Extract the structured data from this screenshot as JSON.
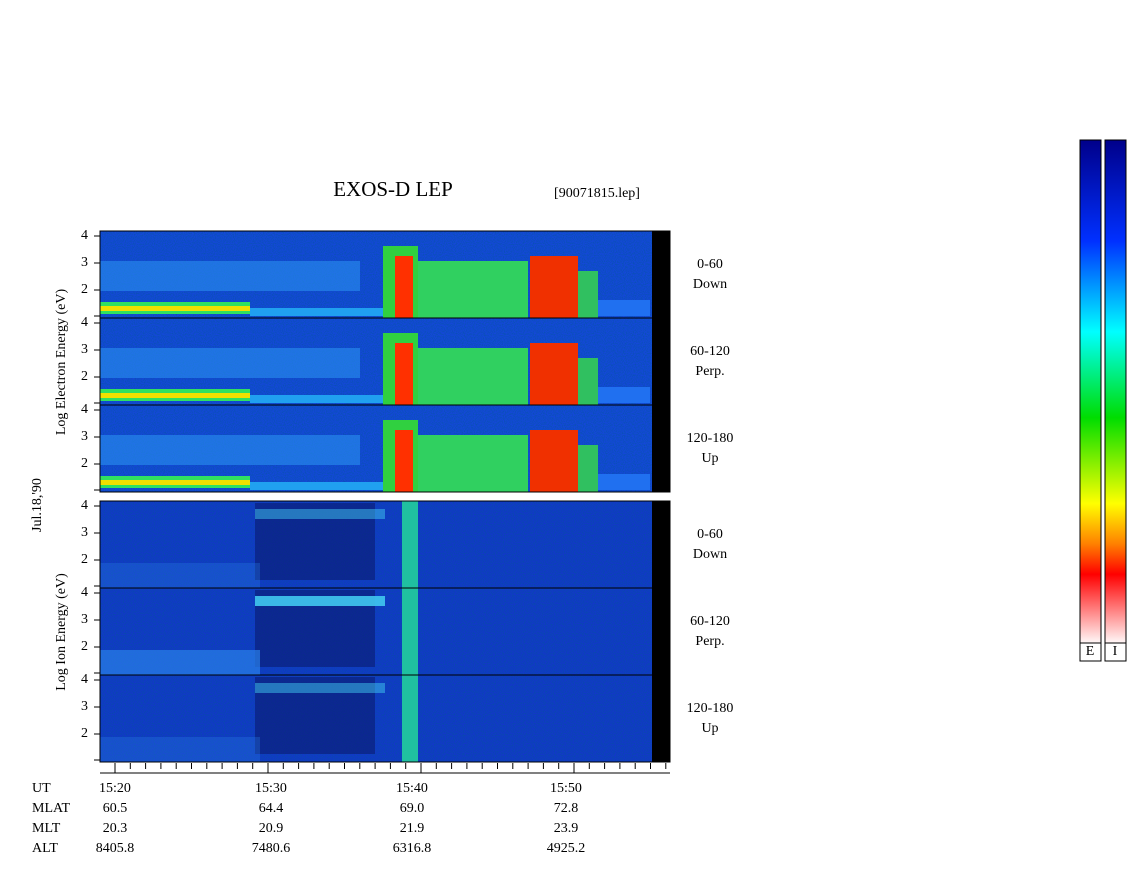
{
  "title": "EXOS-D LEP",
  "file": "[90071815.lep]",
  "date": "Jul.18,'90",
  "electron_axis_label": "Log Electron Energy (eV)",
  "ion_axis_label": "Log Ion Energy (eV)",
  "energy_ticks": [
    "2",
    "3",
    "4"
  ],
  "panels": [
    {
      "species": "electron",
      "pitch": "0-60",
      "direction": "Down"
    },
    {
      "species": "electron",
      "pitch": "60-120",
      "direction": "Perp."
    },
    {
      "species": "electron",
      "pitch": "120-180",
      "direction": "Up"
    },
    {
      "species": "ion",
      "pitch": "0-60",
      "direction": "Down"
    },
    {
      "species": "ion",
      "pitch": "60-120",
      "direction": "Perp."
    },
    {
      "species": "ion",
      "pitch": "120-180",
      "direction": "Up"
    }
  ],
  "ephemeris": {
    "names": [
      "UT",
      "MLAT",
      "MLT",
      "ALT"
    ],
    "columns": [
      {
        "UT": "15:20",
        "MLAT": "60.5",
        "MLT": "20.3",
        "ALT": "8405.8"
      },
      {
        "UT": "15:30",
        "MLAT": "64.4",
        "MLT": "20.9",
        "ALT": "7480.6"
      },
      {
        "UT": "15:40",
        "MLAT": "69.0",
        "MLT": "21.9",
        "ALT": "6316.8"
      },
      {
        "UT": "15:50",
        "MLAT": "72.8",
        "MLT": "23.9",
        "ALT": "4925.2"
      }
    ]
  },
  "colorbar_labels": [
    "E",
    "I"
  ]
}
